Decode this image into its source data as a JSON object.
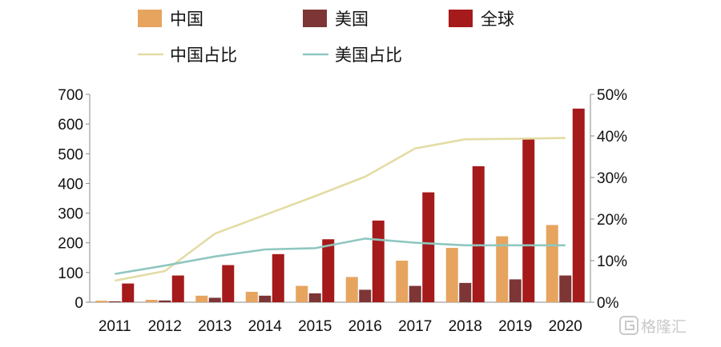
{
  "chart_data": {
    "type": "bar",
    "categories": [
      "2011",
      "2012",
      "2013",
      "2014",
      "2015",
      "2016",
      "2017",
      "2018",
      "2019",
      "2020"
    ],
    "series": [
      {
        "name": "中国",
        "color": "#e6a45f",
        "axis": "left",
        "values": [
          5,
          8,
          22,
          35,
          55,
          85,
          140,
          183,
          222,
          260
        ]
      },
      {
        "name": "美国",
        "color": "#7d3535",
        "axis": "left",
        "values": [
          3,
          6,
          15,
          22,
          30,
          42,
          55,
          65,
          77,
          90
        ]
      },
      {
        "name": "全球",
        "color": "#a51a1a",
        "axis": "left",
        "values": [
          63,
          90,
          125,
          162,
          212,
          275,
          370,
          458,
          548,
          652
        ]
      }
    ],
    "line_series": [
      {
        "name": "中国占比",
        "color": "#e3dca4",
        "axis": "right",
        "values": [
          5.2,
          7.5,
          16.5,
          21,
          25.5,
          30.2,
          37,
          39.2,
          39.3,
          39.5
        ]
      },
      {
        "name": "美国占比",
        "color": "#8fc7c0",
        "axis": "right",
        "values": [
          6.8,
          8.8,
          11,
          12.7,
          13,
          15.3,
          14.3,
          13.7,
          13.7,
          13.7
        ]
      }
    ],
    "y_left": {
      "ylim": [
        0,
        700
      ],
      "ticks": [
        "0",
        "100",
        "200",
        "300",
        "400",
        "500",
        "600",
        "700"
      ]
    },
    "y_right": {
      "ylim": [
        0,
        50
      ],
      "ticks": [
        "0%",
        "10%",
        "20%",
        "30%",
        "40%",
        "50%"
      ]
    },
    "grid": false,
    "legend_placement": "top"
  },
  "watermark": {
    "text": "格隆汇",
    "icon": "g-logo-icon"
  }
}
